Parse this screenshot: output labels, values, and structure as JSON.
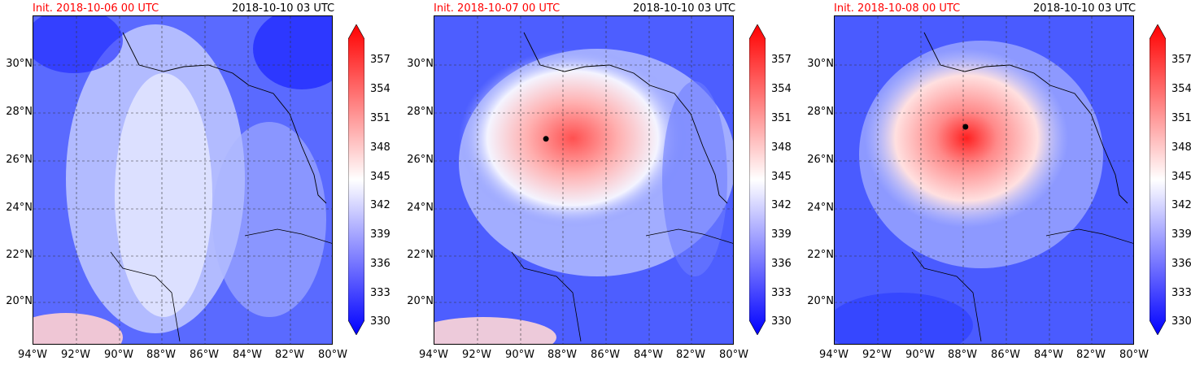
{
  "panels": [
    {
      "init": "Init. 2018-10-06 00 UTC",
      "valid": "2018-10-10 03 UTC",
      "storm_center": null
    },
    {
      "init": "Init. 2018-10-07 00 UTC",
      "valid": "2018-10-10 03 UTC",
      "storm_center": {
        "lon": -88.8,
        "lat": 26.9
      }
    },
    {
      "init": "Init. 2018-10-08 00 UTC",
      "valid": "2018-10-10 03 UTC",
      "storm_center": {
        "lon": -87.9,
        "lat": 27.4
      }
    }
  ],
  "lat_labels": [
    "30°N",
    "28°N",
    "26°N",
    "24°N",
    "22°N",
    "20°N"
  ],
  "lon_labels": [
    "94°W",
    "92°W",
    "90°W",
    "88°W",
    "86°W",
    "84°W",
    "82°W",
    "80°W"
  ],
  "colorbar_ticks": [
    "357",
    "354",
    "351",
    "348",
    "345",
    "342",
    "339",
    "336",
    "333",
    "330"
  ],
  "colorbar": {
    "min": 330,
    "max": 360,
    "low_color": "#0000ff",
    "mid_color": "#ffffff",
    "high_color": "#ff0000"
  },
  "map_extent": {
    "lon": [
      -94,
      -80
    ],
    "lat": [
      18.3,
      32
    ]
  },
  "colors": {
    "cool": "#2a3cff",
    "warm": "#ff3030",
    "coast": "#000000",
    "grid": "#333333"
  }
}
